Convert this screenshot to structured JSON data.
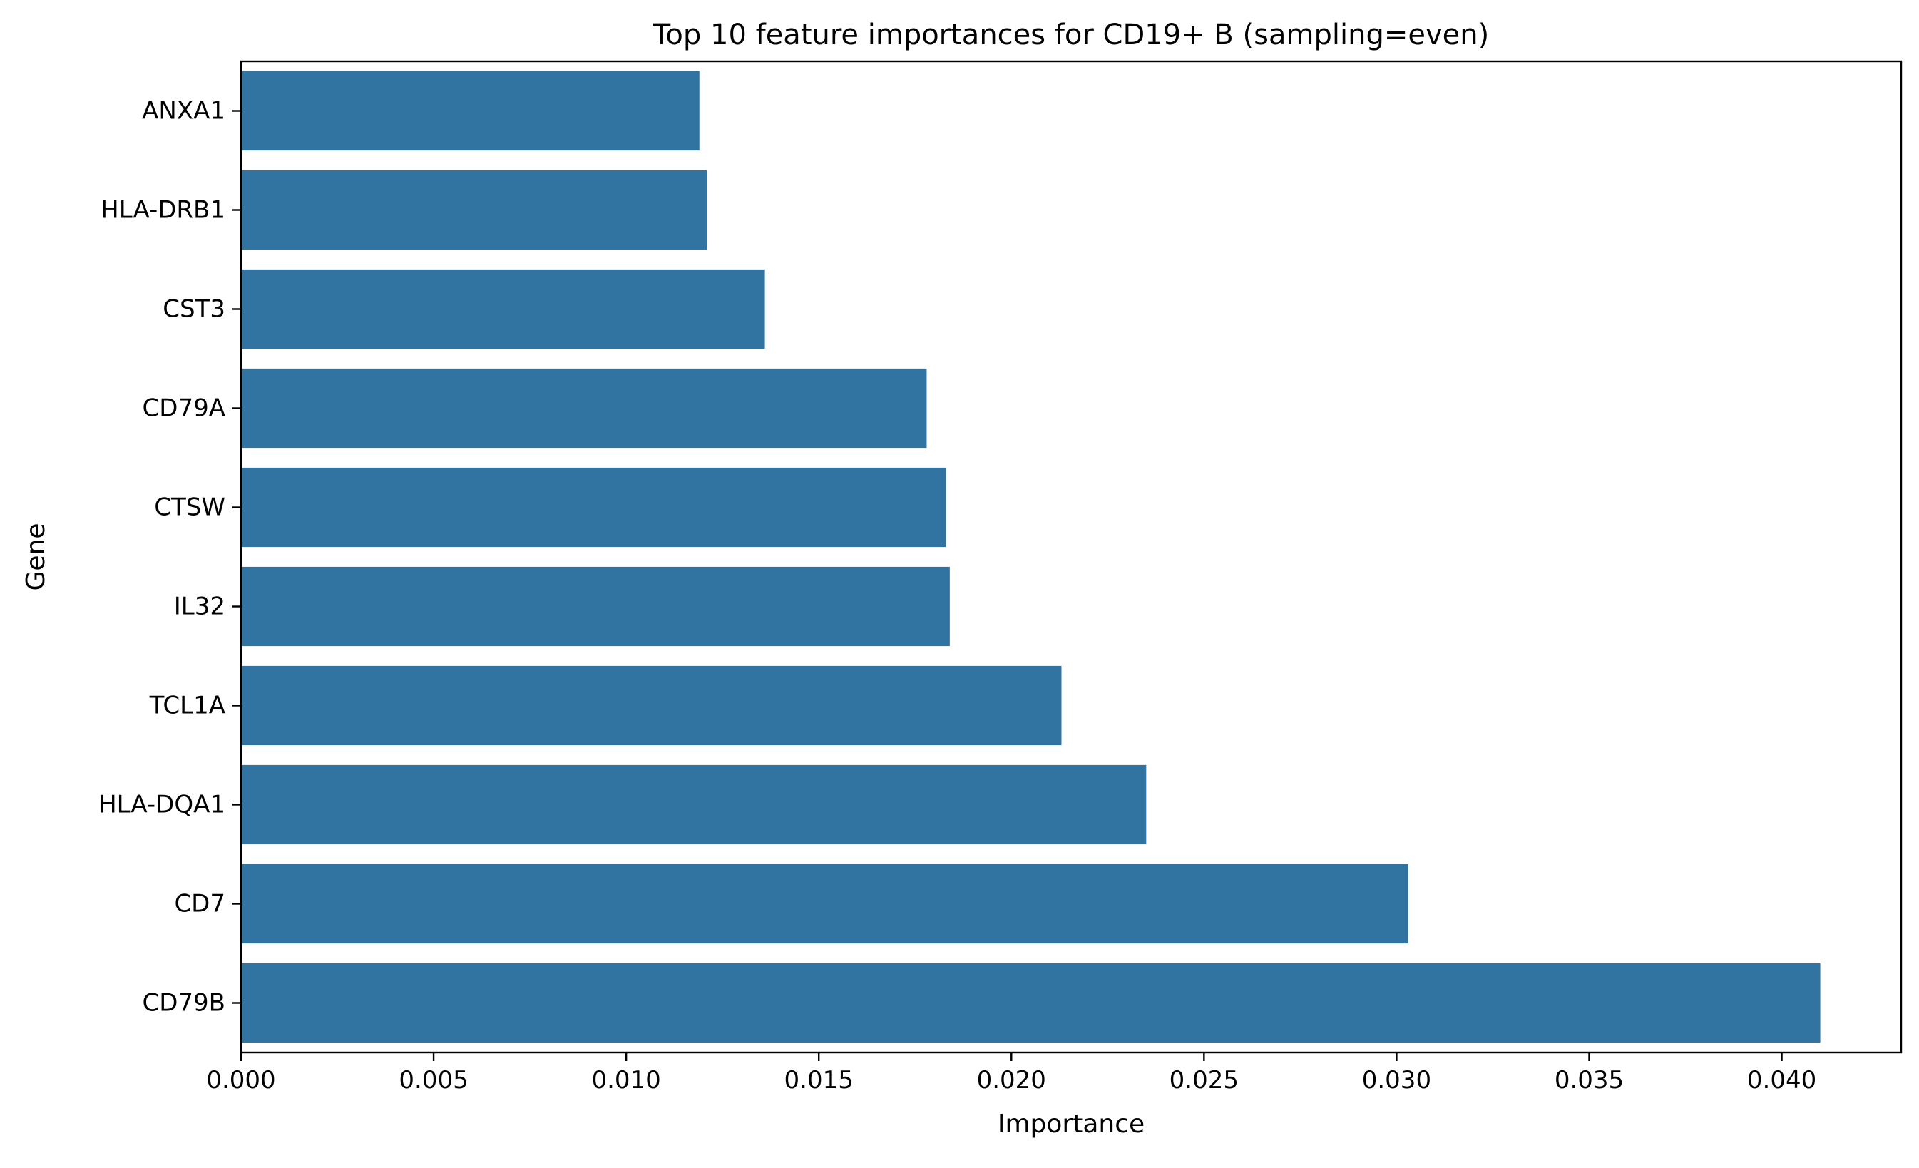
{
  "chart_data": {
    "type": "bar",
    "orientation": "horizontal",
    "title": "Top 10 feature importances for CD19+ B (sampling=even)",
    "xlabel": "Importance",
    "ylabel": "Gene",
    "categories": [
      "ANXA1",
      "HLA-DRB1",
      "CST3",
      "CD79A",
      "CTSW",
      "IL32",
      "TCL1A",
      "HLA-DQA1",
      "CD7",
      "CD79B"
    ],
    "values": [
      0.0119,
      0.0121,
      0.0136,
      0.0178,
      0.0183,
      0.0184,
      0.0213,
      0.0235,
      0.0303,
      0.041
    ],
    "xlim": [
      0.0,
      0.0431
    ],
    "xticks": [
      0.0,
      0.005,
      0.01,
      0.015,
      0.02,
      0.025,
      0.03,
      0.035,
      0.04
    ],
    "xtick_labels": [
      "0.000",
      "0.005",
      "0.010",
      "0.015",
      "0.020",
      "0.025",
      "0.030",
      "0.035",
      "0.040"
    ],
    "bar_color": "#3274a1",
    "grid": false,
    "legend": false
  }
}
